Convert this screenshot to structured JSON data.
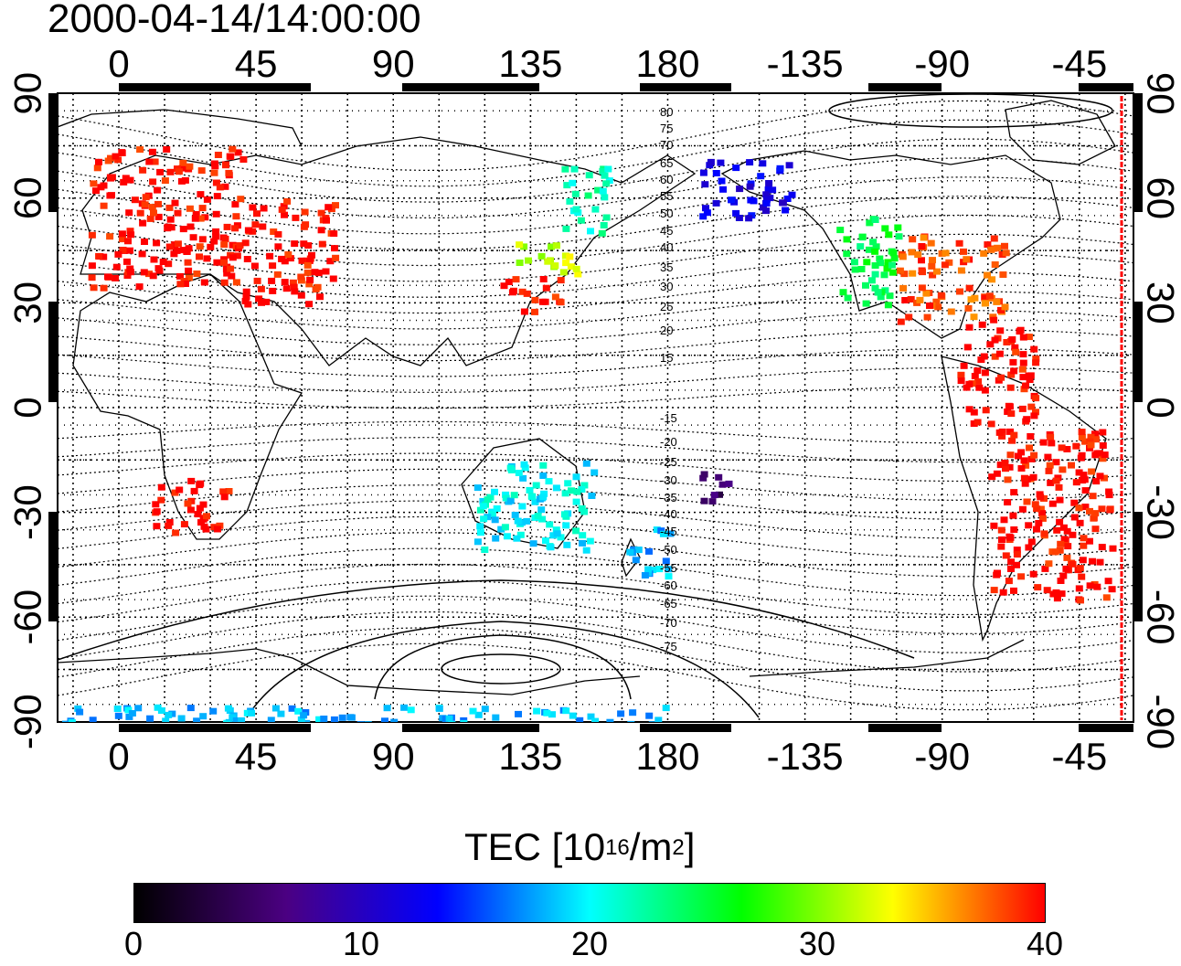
{
  "title": "2000-04-14/14:00:00",
  "map": {
    "lon_top_labels": [
      "0",
      "45",
      "90",
      "135",
      "180",
      "-135",
      "-90",
      "-45"
    ],
    "lon_bottom_labels": [
      "0",
      "45",
      "90",
      "135",
      "180",
      "-135",
      "-90",
      "-45"
    ],
    "lat_left_labels": [
      "90",
      "60",
      "30",
      "0",
      "-30",
      "-60",
      "-90"
    ],
    "lat_right_labels": [
      "90",
      "60",
      "30",
      "0",
      "-30",
      "-60",
      "-90"
    ],
    "maglat_labels": [
      "80",
      "75",
      "70",
      "65",
      "60",
      "55",
      "50",
      "45",
      "40",
      "35",
      "30",
      "25",
      "20",
      "15",
      "-15",
      "-20",
      "-25",
      "-30",
      "-35",
      "-40",
      "-45",
      "-50",
      "-55",
      "-60",
      "-65",
      "-70",
      "-75"
    ]
  },
  "colorbar": {
    "title_main": "TEC  [10",
    "title_exp": "16",
    "title_unit": "/m",
    "title_exp2": "2",
    "title_end": "]",
    "tick_labels": [
      "0",
      "10",
      "20",
      "30",
      "40"
    ],
    "range": [
      0,
      40
    ],
    "colors": [
      "#000000",
      "#4b0082",
      "#0000ff",
      "#00ffff",
      "#00ff00",
      "#ffff00",
      "#ff0000"
    ]
  },
  "tec_data": {
    "type": "heatmap",
    "units": "10^16/m^2",
    "regions": [
      {
        "lon_range": [
          -10,
          40
        ],
        "lat_range": [
          35,
          75
        ],
        "value": 40
      },
      {
        "lon_range": [
          40,
          70
        ],
        "lat_range": [
          30,
          60
        ],
        "value": 40
      },
      {
        "lon_range": [
          125,
          145
        ],
        "lat_range": [
          28,
          38
        ],
        "value": 40
      },
      {
        "lon_range": [
          130,
          150
        ],
        "lat_range": [
          38,
          48
        ],
        "value": 32
      },
      {
        "lon_range": [
          145,
          160
        ],
        "lat_range": [
          50,
          70
        ],
        "value": 22
      },
      {
        "lon_range": [
          -170,
          -140
        ],
        "lat_range": [
          55,
          72
        ],
        "value": 12
      },
      {
        "lon_range": [
          -125,
          -105
        ],
        "lat_range": [
          30,
          55
        ],
        "value": 25
      },
      {
        "lon_range": [
          -105,
          -70
        ],
        "lat_range": [
          25,
          50
        ],
        "value": 38
      },
      {
        "lon_range": [
          -85,
          -60
        ],
        "lat_range": [
          -5,
          25
        ],
        "value": 40
      },
      {
        "lon_range": [
          -75,
          -35
        ],
        "lat_range": [
          -55,
          -5
        ],
        "value": 40
      },
      {
        "lon_range": [
          10,
          35
        ],
        "lat_range": [
          -35,
          -20
        ],
        "value": 40
      },
      {
        "lon_range": [
          115,
          155
        ],
        "lat_range": [
          -40,
          -15
        ],
        "value": 20
      },
      {
        "lon_range": [
          165,
          180
        ],
        "lat_range": [
          -48,
          -34
        ],
        "value": 18
      },
      {
        "lon_range": [
          -170,
          -160
        ],
        "lat_range": [
          -28,
          -18
        ],
        "value": 5
      },
      {
        "lon_range": [
          -20,
          180
        ],
        "lat_range": [
          -90,
          -85
        ],
        "value": 18
      }
    ]
  }
}
